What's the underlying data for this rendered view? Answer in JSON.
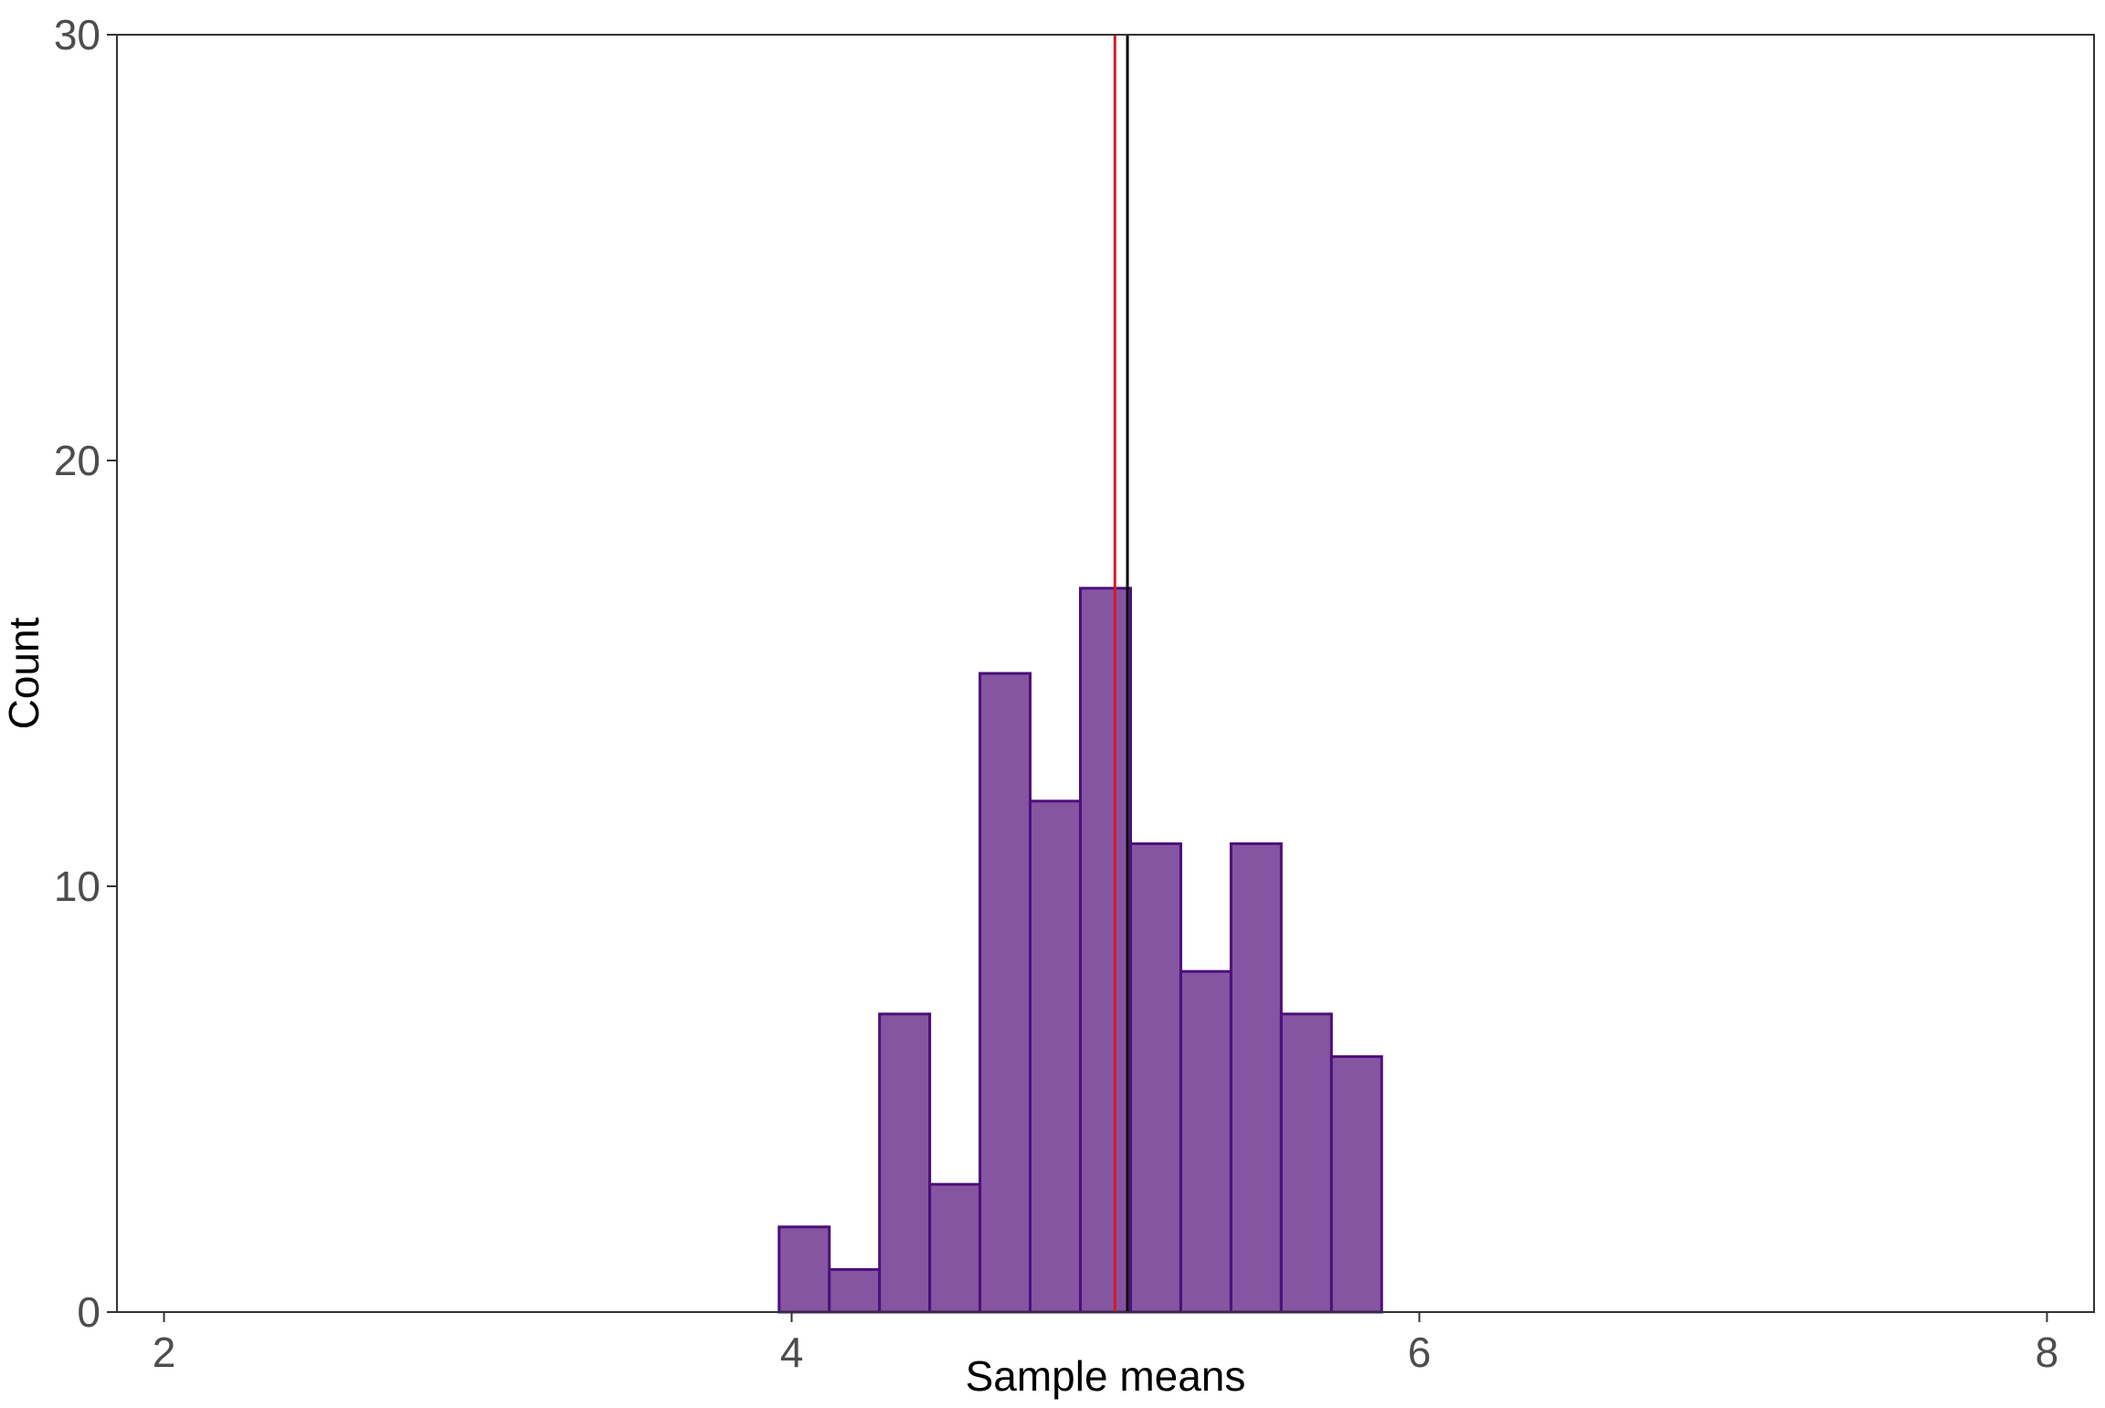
{
  "chart_data": {
    "type": "bar",
    "subtype": "histogram",
    "title": "",
    "xlabel": "Sample means",
    "ylabel": "Count",
    "xlim": [
      1.85,
      8.15
    ],
    "ylim": [
      0,
      30
    ],
    "x_ticks": [
      2,
      4,
      6,
      8
    ],
    "y_ticks": [
      0,
      10,
      20,
      30
    ],
    "grid": false,
    "bins": [
      {
        "x0": 3.96,
        "x1": 4.12,
        "count": 2
      },
      {
        "x0": 4.12,
        "x1": 4.28,
        "count": 1
      },
      {
        "x0": 4.28,
        "x1": 4.44,
        "count": 7
      },
      {
        "x0": 4.44,
        "x1": 4.6,
        "count": 3
      },
      {
        "x0": 4.6,
        "x1": 4.76,
        "count": 15
      },
      {
        "x0": 4.76,
        "x1": 4.92,
        "count": 12
      },
      {
        "x0": 4.92,
        "x1": 5.08,
        "count": 17
      },
      {
        "x0": 5.08,
        "x1": 5.24,
        "count": 11
      },
      {
        "x0": 5.24,
        "x1": 5.4,
        "count": 8
      },
      {
        "x0": 5.4,
        "x1": 5.56,
        "count": 11
      },
      {
        "x0": 5.56,
        "x1": 5.72,
        "count": 7
      },
      {
        "x0": 5.72,
        "x1": 5.88,
        "count": 6
      }
    ],
    "bar_fill": "#8655a2",
    "bar_stroke": "#4b0f7a",
    "reference_lines": [
      {
        "x": 5.03,
        "color": "#d7191c"
      },
      {
        "x": 5.07,
        "color": "#000000"
      }
    ]
  }
}
